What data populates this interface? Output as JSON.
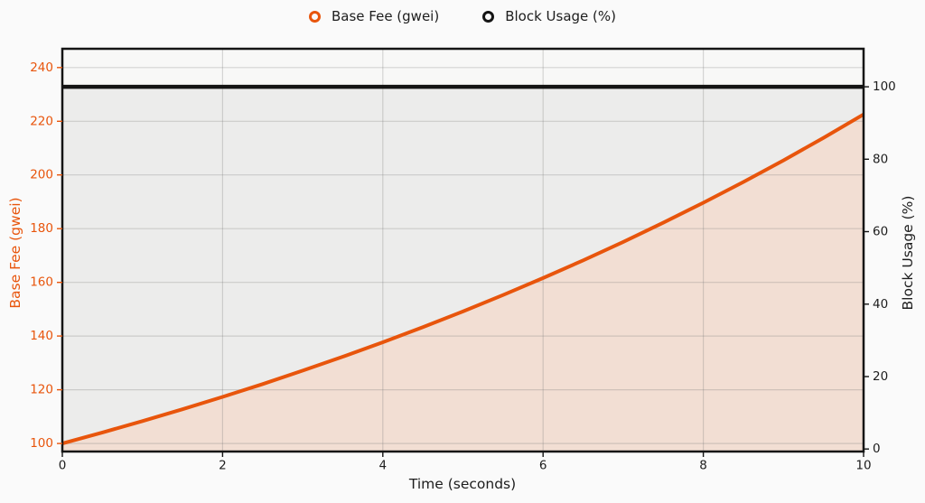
{
  "figure": {
    "background": "#fafafa",
    "plot_background": "#f8f8f7",
    "grid_color": "#787878",
    "spine_color": "#141414"
  },
  "legend": {
    "position": "top-center",
    "items": [
      {
        "label": "Base Fee (gwei)",
        "marker": "open-circle",
        "color": "#e8550c"
      },
      {
        "label": "Block Usage (%)",
        "marker": "open-circle",
        "color": "#141414"
      }
    ]
  },
  "chart_data": {
    "type": "line",
    "title": "",
    "xlabel": "Time (seconds)",
    "grid": true,
    "legend_position": "top-center",
    "xlim": [
      0,
      10
    ],
    "xticks": [
      0,
      2,
      4,
      6,
      8,
      10
    ],
    "x": [
      0,
      0.5,
      1,
      1.5,
      2,
      2.5,
      3,
      3.5,
      4,
      4.5,
      5,
      5.5,
      6,
      6.5,
      7,
      7.5,
      8,
      8.5,
      9,
      9.5,
      10
    ],
    "series": [
      {
        "name": "Base Fee (gwei)",
        "axis": "left",
        "color": "#e8550c",
        "area_fill": "#f2ded3",
        "values": [
          100.0,
          104.08,
          108.33,
          112.75,
          117.35,
          122.14,
          127.12,
          132.31,
          137.71,
          143.33,
          149.18,
          155.27,
          161.61,
          168.2,
          175.07,
          182.21,
          189.65,
          197.39,
          205.44,
          213.83,
          222.55
        ]
      },
      {
        "name": "Block Usage (%)",
        "axis": "right",
        "color": "#141414",
        "area_fill": "#ececeb",
        "values": [
          100,
          100,
          100,
          100,
          100,
          100,
          100,
          100,
          100,
          100,
          100,
          100,
          100,
          100,
          100,
          100,
          100,
          100,
          100,
          100,
          100
        ]
      }
    ],
    "left_axis": {
      "label": "Base Fee (gwei)",
      "color": "#e8550c",
      "ticks": [
        100,
        120,
        140,
        160,
        180,
        200,
        220,
        240
      ],
      "lim": [
        97,
        247
      ]
    },
    "right_axis": {
      "label": "Block Usage (%)",
      "color": "#1d1d1d",
      "ticks": [
        0,
        20,
        40,
        60,
        80,
        100
      ],
      "lim": [
        -0.7,
        110.5
      ]
    },
    "tick_label_color": "#1d1d1d"
  }
}
